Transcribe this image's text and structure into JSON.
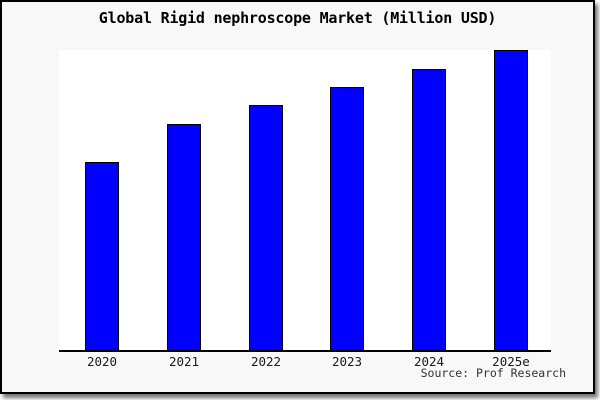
{
  "title": "Global Rigid nephroscope Market (Million USD)",
  "source": {
    "text": "Source: Prof Research"
  },
  "colors": {
    "bar_fill": "#0000ff",
    "bar_border": "#000000",
    "figure_bg": "#f8f8f8",
    "plot_bg": "#ffffff",
    "frame_border": "#000000",
    "axis": "#000000"
  },
  "chart_data": {
    "type": "bar",
    "title": "Global Rigid nephroscope Market (Million USD)",
    "categories": [
      "2020",
      "2021",
      "2022",
      "2023",
      "2024",
      "2025e"
    ],
    "values": [
      188,
      226,
      245,
      263,
      281,
      300
    ],
    "values_note": "No y-axis or value labels shown; values are relative bar heights in pixels (plot height = 300)",
    "xlabel": "",
    "ylabel": "",
    "ylim": [
      0,
      300
    ],
    "grid": false,
    "legend": "none",
    "bar_color": "#0000ff",
    "source": "Source: Prof Research"
  }
}
